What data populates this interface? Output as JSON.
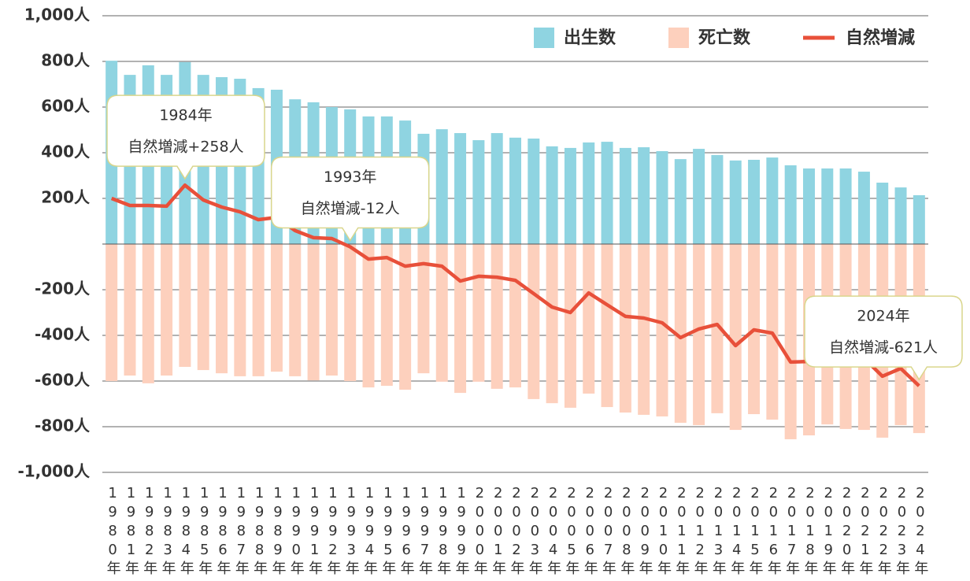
{
  "chart_data": {
    "type": "bar",
    "categories": [
      "1980年",
      "1981年",
      "1982年",
      "1983年",
      "1984年",
      "1985年",
      "1986年",
      "1987年",
      "1988年",
      "1989年",
      "1990年",
      "1991年",
      "1992年",
      "1993年",
      "1994年",
      "1995年",
      "1996年",
      "1997年",
      "1998年",
      "1999年",
      "2000年",
      "2001年",
      "2002年",
      "2003年",
      "2004年",
      "2005年",
      "2006年",
      "2007年",
      "2008年",
      "2009年",
      "2010年",
      "2011年",
      "2012年",
      "2013年",
      "2014年",
      "2015年",
      "2016年",
      "2017年",
      "2018年",
      "2019年",
      "2020年",
      "2021年",
      "2022年",
      "2023年",
      "2024年"
    ],
    "series": [
      {
        "name": "出生数",
        "color": "#8fd4e1",
        "values": [
          803,
          741,
          783,
          741,
          797,
          741,
          731,
          724,
          683,
          676,
          634,
          621,
          600,
          590,
          559,
          559,
          541,
          483,
          503,
          486,
          455,
          486,
          466,
          462,
          428,
          421,
          445,
          448,
          421,
          424,
          407,
          372,
          417,
          390,
          366,
          369,
          379,
          345,
          331,
          331,
          331,
          317,
          269,
          248,
          214
        ]
      },
      {
        "name": "死亡数",
        "color": "#fdd0bd",
        "values": [
          -600,
          -576,
          -610,
          -576,
          -538,
          -552,
          -566,
          -579,
          -579,
          -559,
          -579,
          -597,
          -576,
          -600,
          -628,
          -621,
          -638,
          -566,
          -603,
          -652,
          -603,
          -634,
          -628,
          -679,
          -697,
          -717,
          -655,
          -714,
          -738,
          -748,
          -755,
          -783,
          -793,
          -741,
          -814,
          -745,
          -769,
          -855,
          -838,
          -790,
          -810,
          -814,
          -848,
          -793,
          -828
        ]
      },
      {
        "name": "自然増減",
        "type": "line",
        "color": "#e8503a",
        "values": [
          200,
          169,
          169,
          166,
          258,
          193,
          162,
          141,
          107,
          117,
          59,
          28,
          24,
          -12,
          -66,
          -59,
          -97,
          -86,
          -97,
          -162,
          -141,
          -145,
          -159,
          -217,
          -276,
          -300,
          -214,
          -266,
          -317,
          -324,
          -345,
          -410,
          -372,
          -352,
          -445,
          -376,
          -390,
          -517,
          -514,
          -469,
          -479,
          -500,
          -579,
          -545,
          -621
        ]
      }
    ],
    "ylim": [
      -1000,
      1000
    ],
    "yticks": [
      {
        "value": 1000,
        "label": "1,000人"
      },
      {
        "value": 800,
        "label": "800人"
      },
      {
        "value": 600,
        "label": "600人"
      },
      {
        "value": 400,
        "label": "400人"
      },
      {
        "value": 200,
        "label": "200人"
      },
      {
        "value": -200,
        "label": "-200人"
      },
      {
        "value": -400,
        "label": "-400人"
      },
      {
        "value": -600,
        "label": "-600人"
      },
      {
        "value": -800,
        "label": "-800人"
      },
      {
        "value": -1000,
        "label": "-1,000人"
      }
    ],
    "grid": true,
    "legend": "top-right",
    "annotations": [
      {
        "label": "1984年",
        "text": "自然増減+258人"
      },
      {
        "label": "1993年",
        "text": "自然増減-12人"
      },
      {
        "label": "2024年",
        "text": "自然増減-621人"
      }
    ]
  }
}
